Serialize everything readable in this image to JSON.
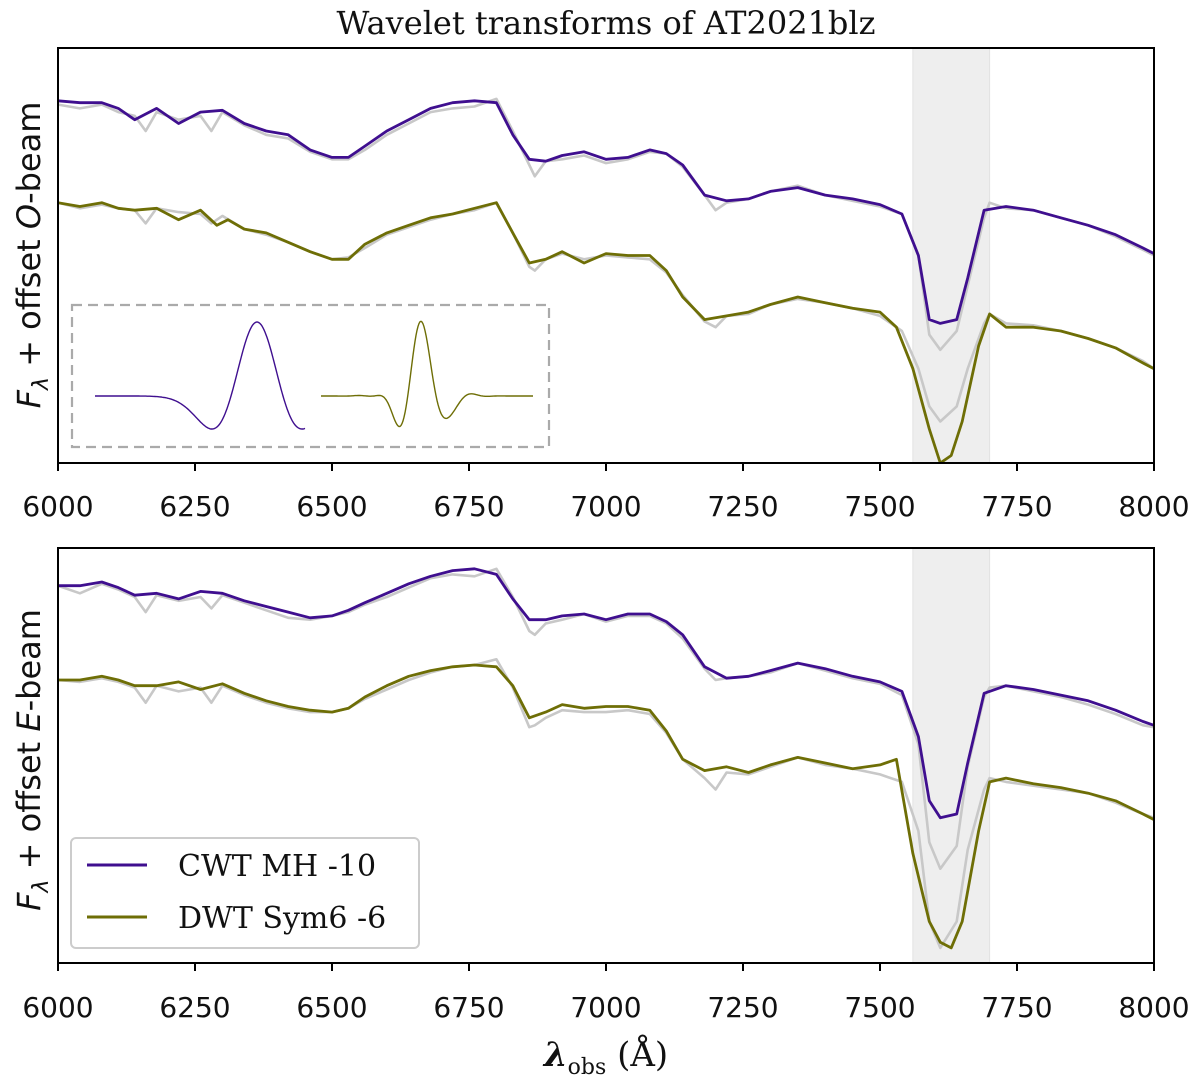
{
  "title": "Wavelet transforms of AT2021blz",
  "xlabel_sym": "λ",
  "xlabel_sub": "obs",
  "xlabel_unit": " (Å)",
  "colors": {
    "cwt": "#3f0f8f",
    "dwt": "#6e6e06",
    "raw": "#c8c8c8",
    "band": "#eeeeee",
    "inset_border": "#aaaaaa"
  },
  "legend": {
    "cwt": "CWT MH -10",
    "dwt": "DWT Sym6 -6"
  },
  "chart_data": [
    {
      "type": "line",
      "panel": "top",
      "ylabel": {
        "f": "F",
        "sub": "λ",
        "mid": " + offset ",
        "beam": "O",
        "tail": "-beam"
      },
      "xlim": [
        6000,
        8000
      ],
      "ylim": [
        -0.05,
        1.05
      ],
      "xticks": [
        6000,
        6250,
        6500,
        6750,
        7000,
        7250,
        7500,
        7750,
        8000
      ],
      "shaded_band": [
        7560,
        7700
      ],
      "series": [
        {
          "name": "CWT MH -10",
          "x": [
            6000,
            6040,
            6080,
            6110,
            6140,
            6180,
            6220,
            6260,
            6300,
            6340,
            6380,
            6420,
            6460,
            6500,
            6530,
            6560,
            6600,
            6640,
            6680,
            6720,
            6760,
            6800,
            6830,
            6860,
            6890,
            6920,
            6960,
            7000,
            7040,
            7080,
            7110,
            7140,
            7180,
            7220,
            7260,
            7300,
            7350,
            7400,
            7450,
            7500,
            7540,
            7570,
            7590,
            7610,
            7640,
            7660,
            7690,
            7730,
            7780,
            7830,
            7880,
            7930,
            7980,
            8000
          ],
          "y": [
            0.91,
            0.905,
            0.905,
            0.89,
            0.86,
            0.89,
            0.85,
            0.88,
            0.885,
            0.85,
            0.83,
            0.82,
            0.78,
            0.76,
            0.76,
            0.79,
            0.83,
            0.86,
            0.89,
            0.905,
            0.91,
            0.905,
            0.82,
            0.755,
            0.75,
            0.765,
            0.775,
            0.755,
            0.76,
            0.78,
            0.77,
            0.74,
            0.66,
            0.645,
            0.65,
            0.67,
            0.68,
            0.66,
            0.65,
            0.635,
            0.61,
            0.5,
            0.33,
            0.32,
            0.33,
            0.44,
            0.62,
            0.63,
            0.62,
            0.6,
            0.58,
            0.555,
            0.52,
            0.505
          ]
        },
        {
          "name": "DWT Sym6 -6",
          "x": [
            6000,
            6040,
            6080,
            6110,
            6140,
            6180,
            6220,
            6260,
            6290,
            6310,
            6340,
            6380,
            6420,
            6460,
            6500,
            6530,
            6560,
            6600,
            6640,
            6680,
            6720,
            6760,
            6800,
            6830,
            6860,
            6890,
            6920,
            6960,
            7000,
            7040,
            7080,
            7110,
            7140,
            7180,
            7220,
            7260,
            7300,
            7350,
            7400,
            7450,
            7500,
            7530,
            7560,
            7590,
            7610,
            7630,
            7650,
            7680,
            7700,
            7730,
            7780,
            7830,
            7880,
            7930,
            7980,
            8000
          ],
          "y": [
            0.64,
            0.63,
            0.64,
            0.625,
            0.62,
            0.625,
            0.595,
            0.62,
            0.58,
            0.595,
            0.57,
            0.56,
            0.535,
            0.51,
            0.49,
            0.49,
            0.53,
            0.56,
            0.58,
            0.6,
            0.61,
            0.625,
            0.64,
            0.56,
            0.48,
            0.49,
            0.51,
            0.48,
            0.505,
            0.5,
            0.5,
            0.46,
            0.39,
            0.33,
            0.34,
            0.35,
            0.37,
            0.39,
            0.375,
            0.36,
            0.35,
            0.31,
            0.2,
            0.04,
            -0.05,
            -0.03,
            0.06,
            0.26,
            0.345,
            0.31,
            0.31,
            0.3,
            0.28,
            0.255,
            0.215,
            0.2
          ]
        }
      ],
      "raw": [
        {
          "x": [
            6000,
            6040,
            6080,
            6110,
            6140,
            6160,
            6180,
            6220,
            6260,
            6280,
            6300,
            6340,
            6380,
            6420,
            6460,
            6500,
            6530,
            6560,
            6600,
            6640,
            6680,
            6720,
            6760,
            6800,
            6830,
            6860,
            6870,
            6890,
            6920,
            6960,
            7000,
            7040,
            7080,
            7110,
            7140,
            7180,
            7200,
            7220,
            7260,
            7300,
            7350,
            7400,
            7450,
            7500,
            7540,
            7570,
            7590,
            7610,
            7640,
            7660,
            7690,
            7700,
            7730,
            7780,
            7830,
            7880,
            7930,
            7980,
            8000
          ],
          "y": [
            0.9,
            0.89,
            0.9,
            0.88,
            0.87,
            0.83,
            0.88,
            0.86,
            0.87,
            0.83,
            0.88,
            0.845,
            0.82,
            0.81,
            0.775,
            0.755,
            0.755,
            0.78,
            0.82,
            0.85,
            0.88,
            0.89,
            0.895,
            0.915,
            0.83,
            0.74,
            0.71,
            0.75,
            0.755,
            0.765,
            0.745,
            0.755,
            0.775,
            0.77,
            0.735,
            0.66,
            0.62,
            0.64,
            0.65,
            0.67,
            0.685,
            0.66,
            0.645,
            0.63,
            0.61,
            0.5,
            0.29,
            0.25,
            0.3,
            0.42,
            0.6,
            0.64,
            0.625,
            0.62,
            0.6,
            0.58,
            0.55,
            0.515,
            0.5
          ]
        },
        {
          "x": [
            6000,
            6040,
            6080,
            6110,
            6140,
            6160,
            6180,
            6220,
            6260,
            6280,
            6300,
            6340,
            6380,
            6420,
            6460,
            6500,
            6530,
            6560,
            6600,
            6640,
            6680,
            6720,
            6760,
            6800,
            6830,
            6860,
            6870,
            6890,
            6920,
            6960,
            7000,
            7040,
            7080,
            7110,
            7140,
            7180,
            7200,
            7220,
            7260,
            7300,
            7350,
            7400,
            7450,
            7500,
            7540,
            7570,
            7590,
            7610,
            7640,
            7660,
            7690,
            7700,
            7730,
            7780,
            7830,
            7880,
            7930,
            7980,
            8000
          ],
          "y": [
            0.64,
            0.625,
            0.635,
            0.625,
            0.62,
            0.585,
            0.625,
            0.615,
            0.61,
            0.585,
            0.605,
            0.57,
            0.555,
            0.535,
            0.51,
            0.49,
            0.495,
            0.52,
            0.555,
            0.575,
            0.595,
            0.61,
            0.62,
            0.64,
            0.56,
            0.47,
            0.46,
            0.49,
            0.505,
            0.49,
            0.5,
            0.495,
            0.49,
            0.455,
            0.395,
            0.325,
            0.31,
            0.34,
            0.345,
            0.37,
            0.385,
            0.375,
            0.36,
            0.34,
            0.3,
            0.2,
            0.1,
            0.06,
            0.1,
            0.2,
            0.32,
            0.345,
            0.32,
            0.315,
            0.3,
            0.28,
            0.255,
            0.22,
            0.2
          ]
        }
      ]
    },
    {
      "type": "line",
      "panel": "bottom",
      "ylabel": {
        "f": "F",
        "sub": "λ",
        "mid": " + offset ",
        "beam": "E",
        "tail": "-beam"
      },
      "xlim": [
        6000,
        8000
      ],
      "ylim": [
        -0.05,
        1.05
      ],
      "xticks": [
        6000,
        6250,
        6500,
        6750,
        7000,
        7250,
        7500,
        7750,
        8000
      ],
      "shaded_band": [
        7560,
        7700
      ],
      "series": [
        {
          "name": "CWT MH -10",
          "x": [
            6000,
            6040,
            6080,
            6110,
            6140,
            6180,
            6220,
            6260,
            6300,
            6340,
            6380,
            6420,
            6460,
            6500,
            6530,
            6560,
            6600,
            6640,
            6680,
            6720,
            6760,
            6800,
            6830,
            6860,
            6890,
            6920,
            6960,
            7000,
            7040,
            7080,
            7110,
            7140,
            7180,
            7220,
            7260,
            7300,
            7350,
            7400,
            7450,
            7500,
            7540,
            7570,
            7590,
            7610,
            7640,
            7660,
            7690,
            7730,
            7780,
            7830,
            7880,
            7930,
            7980,
            8000
          ],
          "y": [
            0.95,
            0.95,
            0.96,
            0.945,
            0.925,
            0.93,
            0.915,
            0.935,
            0.93,
            0.91,
            0.895,
            0.88,
            0.865,
            0.87,
            0.885,
            0.905,
            0.93,
            0.955,
            0.975,
            0.99,
            0.995,
            0.98,
            0.915,
            0.86,
            0.86,
            0.87,
            0.875,
            0.86,
            0.875,
            0.875,
            0.855,
            0.82,
            0.735,
            0.705,
            0.71,
            0.725,
            0.745,
            0.73,
            0.71,
            0.695,
            0.67,
            0.55,
            0.38,
            0.335,
            0.345,
            0.48,
            0.665,
            0.685,
            0.675,
            0.66,
            0.645,
            0.62,
            0.59,
            0.58
          ]
        },
        {
          "name": "DWT Sym6 -6",
          "x": [
            6000,
            6040,
            6080,
            6110,
            6140,
            6180,
            6220,
            6260,
            6300,
            6340,
            6380,
            6420,
            6460,
            6500,
            6530,
            6560,
            6600,
            6640,
            6680,
            6720,
            6760,
            6800,
            6830,
            6860,
            6890,
            6920,
            6960,
            7000,
            7040,
            7080,
            7110,
            7140,
            7180,
            7220,
            7260,
            7300,
            7350,
            7400,
            7450,
            7500,
            7530,
            7560,
            7590,
            7610,
            7630,
            7650,
            7680,
            7700,
            7730,
            7780,
            7830,
            7880,
            7930,
            7980,
            8000
          ],
          "y": [
            0.7,
            0.7,
            0.71,
            0.7,
            0.685,
            0.685,
            0.695,
            0.675,
            0.69,
            0.665,
            0.645,
            0.63,
            0.62,
            0.615,
            0.625,
            0.655,
            0.685,
            0.71,
            0.725,
            0.735,
            0.74,
            0.735,
            0.685,
            0.6,
            0.615,
            0.635,
            0.625,
            0.63,
            0.63,
            0.62,
            0.565,
            0.49,
            0.46,
            0.47,
            0.455,
            0.475,
            0.495,
            0.48,
            0.465,
            0.475,
            0.49,
            0.24,
            0.06,
            0.005,
            -0.01,
            0.06,
            0.3,
            0.43,
            0.44,
            0.425,
            0.415,
            0.4,
            0.38,
            0.345,
            0.33
          ]
        }
      ],
      "raw": [
        {
          "x": [
            6000,
            6040,
            6080,
            6110,
            6140,
            6160,
            6180,
            6220,
            6260,
            6280,
            6300,
            6340,
            6380,
            6420,
            6460,
            6500,
            6530,
            6560,
            6600,
            6640,
            6680,
            6720,
            6760,
            6800,
            6830,
            6860,
            6870,
            6890,
            6920,
            6960,
            7000,
            7040,
            7080,
            7110,
            7140,
            7180,
            7200,
            7220,
            7260,
            7300,
            7350,
            7400,
            7450,
            7500,
            7540,
            7570,
            7590,
            7610,
            7640,
            7660,
            7690,
            7700,
            7730,
            7780,
            7830,
            7880,
            7930,
            7980,
            8000
          ],
          "y": [
            0.95,
            0.93,
            0.955,
            0.94,
            0.92,
            0.88,
            0.925,
            0.91,
            0.92,
            0.89,
            0.925,
            0.905,
            0.885,
            0.865,
            0.86,
            0.87,
            0.88,
            0.9,
            0.92,
            0.945,
            0.97,
            0.98,
            0.975,
            0.995,
            0.92,
            0.83,
            0.82,
            0.85,
            0.86,
            0.875,
            0.855,
            0.87,
            0.87,
            0.85,
            0.81,
            0.73,
            0.7,
            0.705,
            0.71,
            0.72,
            0.745,
            0.725,
            0.705,
            0.69,
            0.66,
            0.53,
            0.27,
            0.2,
            0.26,
            0.47,
            0.655,
            0.68,
            0.685,
            0.67,
            0.655,
            0.635,
            0.61,
            0.58,
            0.575
          ]
        },
        {
          "x": [
            6000,
            6040,
            6080,
            6110,
            6140,
            6160,
            6180,
            6220,
            6260,
            6280,
            6300,
            6340,
            6380,
            6420,
            6460,
            6500,
            6530,
            6560,
            6600,
            6640,
            6680,
            6720,
            6760,
            6800,
            6830,
            6860,
            6870,
            6890,
            6920,
            6960,
            7000,
            7040,
            7080,
            7110,
            7140,
            7180,
            7200,
            7220,
            7260,
            7300,
            7350,
            7400,
            7450,
            7500,
            7540,
            7570,
            7590,
            7610,
            7640,
            7660,
            7690,
            7700,
            7730,
            7780,
            7830,
            7880,
            7930,
            7980,
            8000
          ],
          "y": [
            0.7,
            0.695,
            0.705,
            0.695,
            0.68,
            0.64,
            0.685,
            0.67,
            0.68,
            0.64,
            0.685,
            0.66,
            0.64,
            0.625,
            0.615,
            0.615,
            0.625,
            0.65,
            0.675,
            0.7,
            0.72,
            0.735,
            0.74,
            0.755,
            0.68,
            0.575,
            0.58,
            0.6,
            0.62,
            0.615,
            0.615,
            0.62,
            0.61,
            0.56,
            0.49,
            0.44,
            0.41,
            0.455,
            0.45,
            0.47,
            0.495,
            0.475,
            0.465,
            0.45,
            0.43,
            0.3,
            0.06,
            -0.01,
            0.06,
            0.25,
            0.41,
            0.44,
            0.43,
            0.42,
            0.41,
            0.4,
            0.375,
            0.345,
            0.335
          ]
        }
      ]
    }
  ]
}
